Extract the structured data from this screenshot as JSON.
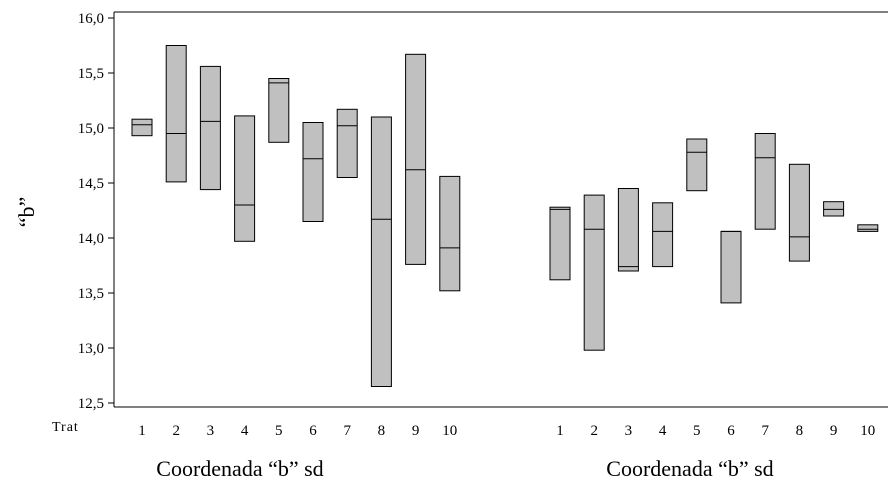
{
  "chart_data": {
    "type": "boxplot",
    "ylabel": "“b”",
    "ylim": [
      12.45,
      16.0
    ],
    "yticks": [
      12.5,
      13.0,
      13.5,
      14.0,
      14.5,
      15.0,
      15.5,
      16.0
    ],
    "ytick_labels": [
      "12,5",
      "13,0",
      "13,5",
      "14,0",
      "14,5",
      "15,0",
      "15,5",
      "16,0"
    ],
    "x_row_label": "Trat",
    "groups": [
      {
        "label": "Coordenada “b” sd",
        "boxes": [
          {
            "trat": "1",
            "low": 14.93,
            "median": 15.03,
            "high": 15.08
          },
          {
            "trat": "2",
            "low": 14.51,
            "median": 14.95,
            "high": 15.75
          },
          {
            "trat": "3",
            "low": 14.44,
            "median": 15.06,
            "high": 15.56
          },
          {
            "trat": "4",
            "low": 13.97,
            "median": 14.3,
            "high": 15.11
          },
          {
            "trat": "5",
            "low": 14.87,
            "median": 15.41,
            "high": 15.45
          },
          {
            "trat": "6",
            "low": 14.15,
            "median": 14.72,
            "high": 15.05
          },
          {
            "trat": "7",
            "low": 14.55,
            "median": 15.02,
            "high": 15.17
          },
          {
            "trat": "8",
            "low": 12.65,
            "median": 14.17,
            "high": 15.1
          },
          {
            "trat": "9",
            "low": 13.76,
            "median": 14.62,
            "high": 15.67
          },
          {
            "trat": "10",
            "low": 13.52,
            "median": 13.91,
            "high": 14.56
          }
        ]
      },
      {
        "label": "Coordenada “b” sd",
        "boxes": [
          {
            "trat": "1",
            "low": 13.62,
            "median": 14.26,
            "high": 14.28
          },
          {
            "trat": "2",
            "low": 12.98,
            "median": 14.08,
            "high": 14.39
          },
          {
            "trat": "3",
            "low": 13.7,
            "median": 13.74,
            "high": 14.45
          },
          {
            "trat": "4",
            "low": 13.74,
            "median": 14.06,
            "high": 14.32
          },
          {
            "trat": "5",
            "low": 14.43,
            "median": 14.78,
            "high": 14.9
          },
          {
            "trat": "6",
            "low": 13.41,
            "median": 14.06,
            "high": 14.06
          },
          {
            "trat": "7",
            "low": 14.08,
            "median": 14.73,
            "high": 14.95
          },
          {
            "trat": "8",
            "low": 13.79,
            "median": 14.01,
            "high": 14.67
          },
          {
            "trat": "9",
            "low": 14.2,
            "median": 14.26,
            "high": 14.33
          },
          {
            "trat": "10",
            "low": 14.06,
            "median": 14.08,
            "high": 14.12
          }
        ]
      }
    ],
    "colors": {
      "box_fill": "#c0c0c0",
      "stroke": "#000000"
    }
  }
}
